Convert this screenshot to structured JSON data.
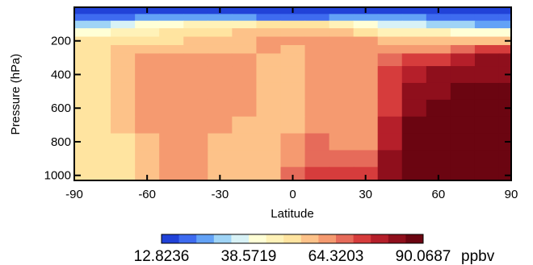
{
  "chart_data": {
    "type": "heatmap",
    "title": "",
    "xlabel": "Latitude",
    "ylabel": "Pressure (hPa)",
    "xlim": [
      -90,
      90
    ],
    "ylim": [
      1030,
      0
    ],
    "x_ticks": [
      "-90",
      "-60",
      "-30",
      "0",
      "30",
      "60",
      "90"
    ],
    "y_ticks": [
      "200",
      "400",
      "600",
      "800",
      "1000"
    ],
    "x_tick_values": [
      -90,
      -60,
      -30,
      0,
      30,
      60,
      90
    ],
    "y_tick_values": [
      200,
      400,
      600,
      800,
      1000
    ],
    "latitudes": [
      -90,
      -80,
      -70,
      -60,
      -50,
      -40,
      -30,
      -20,
      -10,
      0,
      10,
      20,
      30,
      40,
      50,
      60,
      70,
      80,
      90
    ],
    "pressures": [
      20,
      60,
      100,
      150,
      200,
      250,
      300,
      400,
      500,
      600,
      700,
      800,
      900,
      1000
    ],
    "values": [
      [
        12.8,
        12.8,
        12.8,
        12.8,
        12.8,
        12.8,
        12.8,
        12.8,
        12.8,
        12.8,
        12.8,
        12.8,
        12.8,
        12.8,
        12.8,
        12.8,
        12.8,
        12.8,
        12.8
      ],
      [
        20,
        20,
        22,
        24,
        25,
        26,
        26,
        24,
        22,
        22,
        22,
        24,
        25,
        25,
        24,
        22,
        20,
        20,
        20
      ],
      [
        32,
        32,
        35,
        40,
        42,
        44,
        44,
        45,
        50,
        52,
        50,
        48,
        42,
        38,
        35,
        32,
        30,
        28,
        28
      ],
      [
        42,
        42,
        44,
        48,
        50,
        50,
        52,
        55,
        58,
        58,
        58,
        56,
        52,
        48,
        45,
        44,
        42,
        42,
        42
      ],
      [
        50,
        50,
        52,
        52,
        54,
        56,
        58,
        58,
        60,
        60,
        60,
        60,
        60,
        58,
        56,
        55,
        55,
        56,
        58
      ],
      [
        52,
        52,
        55,
        56,
        58,
        58,
        58,
        58,
        60,
        58,
        60,
        62,
        62,
        62,
        62,
        64,
        66,
        70,
        72
      ],
      [
        52,
        52,
        58,
        60,
        60,
        62,
        62,
        60,
        58,
        56,
        62,
        62,
        62,
        66,
        72,
        74,
        76,
        80,
        84
      ],
      [
        52,
        52,
        56,
        62,
        64,
        64,
        62,
        60,
        56,
        56,
        62,
        62,
        62,
        70,
        78,
        82,
        84,
        84,
        84
      ],
      [
        52,
        52,
        56,
        62,
        64,
        62,
        62,
        60,
        56,
        56,
        62,
        62,
        62,
        72,
        80,
        84,
        85,
        85,
        86
      ],
      [
        52,
        52,
        56,
        62,
        62,
        62,
        62,
        60,
        56,
        56,
        62,
        62,
        62,
        74,
        82,
        85,
        86,
        88,
        88
      ],
      [
        52,
        52,
        56,
        60,
        62,
        62,
        60,
        58,
        56,
        58,
        64,
        62,
        62,
        76,
        86,
        88,
        88,
        90,
        90
      ],
      [
        52,
        52,
        54,
        58,
        62,
        62,
        58,
        56,
        56,
        60,
        66,
        64,
        64,
        78,
        88,
        90,
        90,
        90,
        90
      ],
      [
        52,
        52,
        54,
        58,
        62,
        62,
        58,
        56,
        56,
        64,
        68,
        66,
        66,
        80,
        88,
        90,
        90,
        90,
        90
      ],
      [
        52,
        52,
        54,
        58,
        62,
        62,
        58,
        56,
        56,
        66,
        70,
        70,
        70,
        80,
        88,
        90,
        90,
        90,
        90
      ]
    ],
    "colorbar": {
      "labels": [
        "12.8236",
        "38.5719",
        "64.3203",
        "90.0687"
      ],
      "values": [
        12.8236,
        38.5719,
        64.3203,
        90.0687
      ],
      "unit": "ppbv",
      "colors": [
        "#2142d8",
        "#3e6bf0",
        "#63a2f6",
        "#9fd4f6",
        "#d8f2f6",
        "#ffffd6",
        "#fff2b8",
        "#ffe4a0",
        "#fdc289",
        "#f59a70",
        "#e66b5a",
        "#d63c3c",
        "#b51f2a",
        "#8f0f1c",
        "#6b0511"
      ]
    }
  }
}
